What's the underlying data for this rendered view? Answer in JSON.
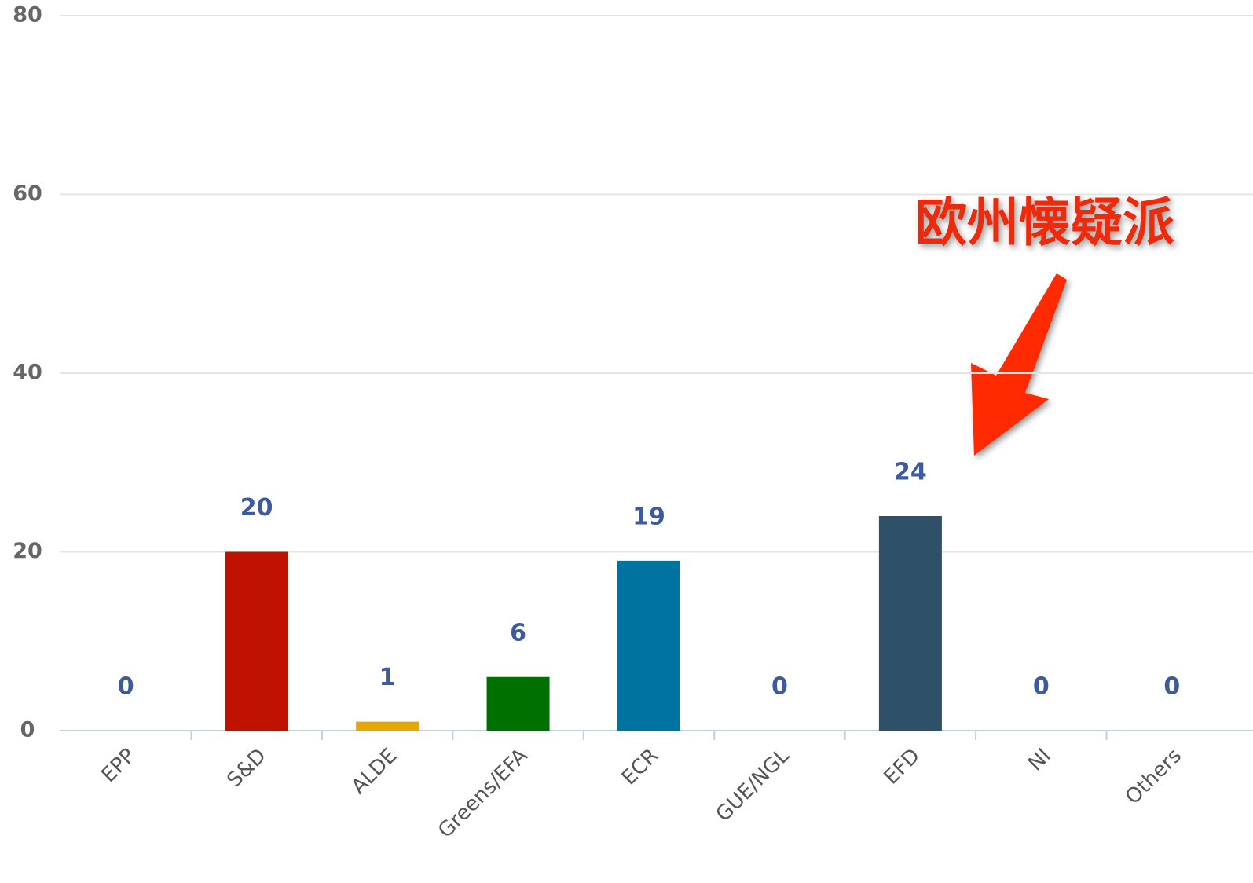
{
  "chart_data": {
    "type": "bar",
    "categories": [
      "EPP",
      "S&D",
      "ALDE",
      "Greens/EFA",
      "ECR",
      "GUE/NGL",
      "EFD",
      "NI",
      "Others"
    ],
    "values": [
      0,
      20,
      1,
      6,
      19,
      0,
      24,
      0,
      0
    ],
    "colors": [
      null,
      "#c01200",
      "#e6a800",
      "#007000",
      "#0073a0",
      null,
      "#2e5068",
      null,
      null
    ],
    "ylim": [
      0,
      80
    ],
    "yticks": [
      0,
      20,
      40,
      60,
      80
    ],
    "grid": true,
    "annotation": "欧州懐疑派"
  }
}
